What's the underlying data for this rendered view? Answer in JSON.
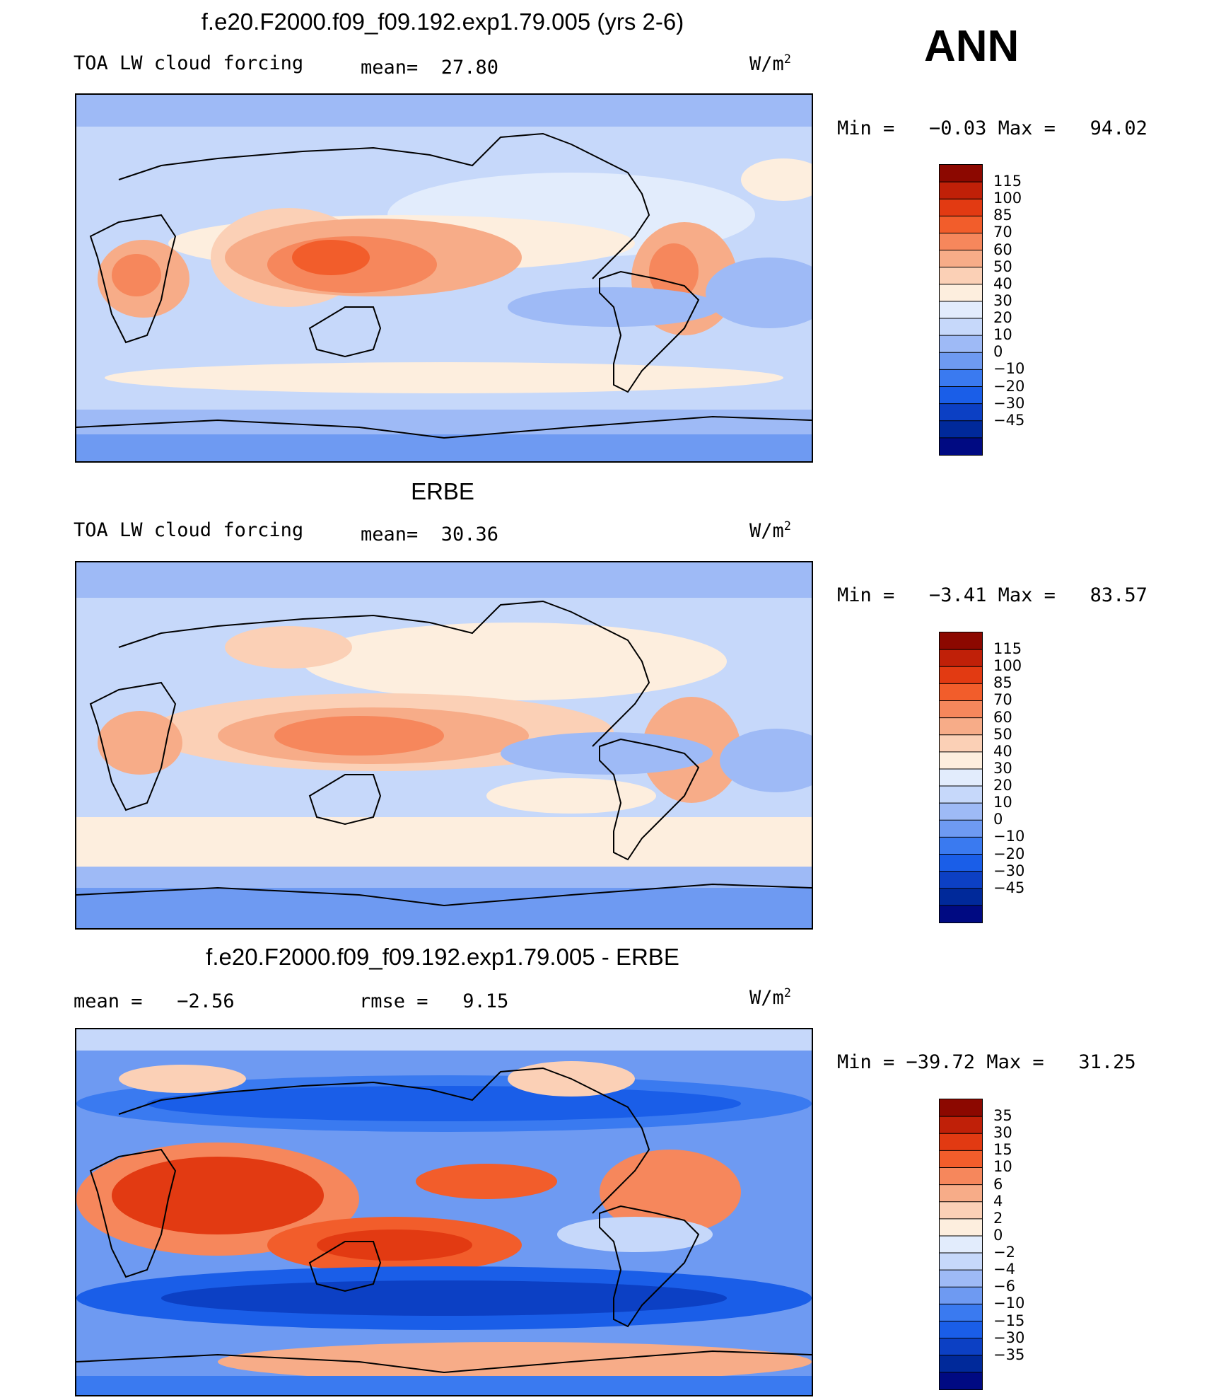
{
  "season": "ANN",
  "palette_fixed": [
    "#000a82",
    "#00299a",
    "#0c40c4",
    "#1a5ee8",
    "#3a7af0",
    "#6e9af2",
    "#9ebaf6",
    "#c6d8fa",
    "#e2ecfc",
    "#fdeede",
    "#fbd0b6",
    "#f7ac88",
    "#f6875c",
    "#f25d2b",
    "#e23a12",
    "#c02008",
    "#8c0800"
  ],
  "palette_diff": [
    "#000a82",
    "#00299a",
    "#0c40c4",
    "#1a5ee8",
    "#3a7af0",
    "#6e9af2",
    "#9ebaf6",
    "#c6d8fa",
    "#e2ecfc",
    "#fdeede",
    "#fbd0b6",
    "#f7ac88",
    "#f6875c",
    "#f25d2b",
    "#e23a12",
    "#c02008",
    "#8c0800"
  ],
  "panels": [
    {
      "title": "f.e20.F2000.f09_f09.192.exp1.79.005 (yrs 2-6)",
      "left_label": "TOA LW cloud forcing",
      "mid_label": "mean=  27.80",
      "units": "W/m",
      "units_sup": "2",
      "minmax": "Min =   −0.03 Max =   94.02",
      "colorbar_ticks": [
        "115",
        "100",
        "85",
        "70",
        "60",
        "50",
        "40",
        "30",
        "20",
        "10",
        "0",
        "−10",
        "−20",
        "−30",
        "−45"
      ]
    },
    {
      "title": "ERBE",
      "left_label": "TOA LW cloud forcing",
      "mid_label": "mean=  30.36",
      "units": "W/m",
      "units_sup": "2",
      "minmax": "Min =   −3.41 Max =   83.57",
      "colorbar_ticks": [
        "115",
        "100",
        "85",
        "70",
        "60",
        "50",
        "40",
        "30",
        "20",
        "10",
        "0",
        "−10",
        "−20",
        "−30",
        "−45"
      ]
    },
    {
      "title": "f.e20.F2000.f09_f09.192.exp1.79.005 - ERBE",
      "left_label": "mean =   −2.56",
      "mid_label": "rmse =   9.15",
      "units": "W/m",
      "units_sup": "2",
      "minmax": "Min = −39.72 Max =   31.25",
      "colorbar_ticks": [
        "35",
        "30",
        "15",
        "10",
        "6",
        "4",
        "2",
        "0",
        "−2",
        "−4",
        "−6",
        "−10",
        "−15",
        "−30",
        "−35"
      ]
    }
  ]
}
